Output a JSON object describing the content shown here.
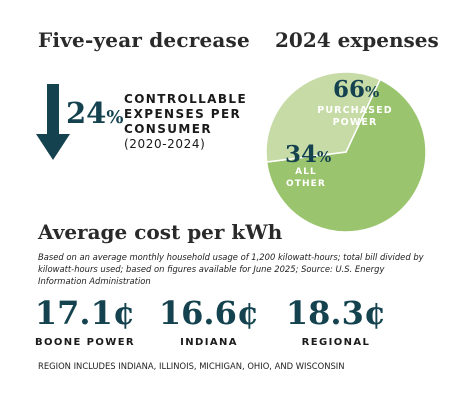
{
  "colors": {
    "teal": "#15424f",
    "green_dark": "#9bc46e",
    "green_light": "#c7dba7"
  },
  "icons": {
    "decrease_arrow": "down-arrow-icon"
  },
  "headings": {
    "decrease": "Five-year decrease",
    "expenses": "2024 expenses",
    "avg_cost": "Average cost per kWh"
  },
  "decrease": {
    "value": "24",
    "unit": "%",
    "line1": "CONTROLLABLE",
    "line2": "EXPENSES PER",
    "line3": "CONSUMER",
    "years": "(2020-2024)"
  },
  "chart_data": [
    {
      "type": "pie",
      "title": "2024 expenses",
      "slices": [
        {
          "label": "PURCHASED POWER",
          "value": 66,
          "display": "66",
          "unit": "%",
          "label_line1": "PURCHASED",
          "label_line2": "POWER",
          "color": "#9bc46e"
        },
        {
          "label": "ALL OTHER",
          "value": 34,
          "display": "34",
          "unit": "%",
          "label_line1": "ALL",
          "label_line2": "OTHER",
          "color": "#c7dba7"
        }
      ]
    },
    {
      "type": "table",
      "title": "Average cost per kWh",
      "categories": [
        "BOONE POWER",
        "INDIANA",
        "REGIONAL"
      ],
      "values": [
        17.1,
        16.6,
        18.3
      ],
      "display": [
        "17.1¢",
        "16.6¢",
        "18.3¢"
      ],
      "unit": "¢"
    }
  ],
  "notes": {
    "method": "Based on an average monthly household usage of 1,200 kilowatt-hours; total bill divided by kilowatt-hours used; based on figures available for June 2025; Source: U.S. Energy Information Administration",
    "region": "REGION INCLUDES INDIANA, ILLINOIS, MICHIGAN, OHIO, AND WISCONSIN"
  }
}
